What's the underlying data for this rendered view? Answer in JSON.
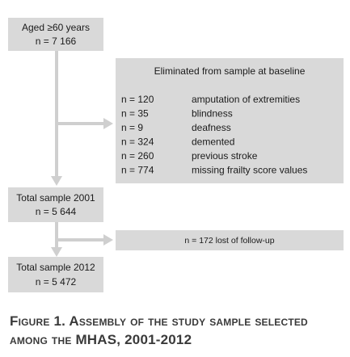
{
  "nodes": [
    {
      "label": "Aged ≥60 years",
      "count": "n = 7 166"
    },
    {
      "label": "Total sample 2001",
      "count": "n = 5 644"
    },
    {
      "label": "Total sample 2012",
      "count": "n = 5 472"
    }
  ],
  "excluded": {
    "title": "Eliminated from sample at baseline",
    "rows": [
      [
        "n = 120",
        "amputation of extremities"
      ],
      [
        "n = 35",
        "blindness"
      ],
      [
        "n = 9",
        "deafness"
      ],
      [
        "n = 324",
        "demented"
      ],
      [
        "n = 260",
        "previous stroke"
      ],
      [
        "n = 774",
        "missing frailty score values"
      ]
    ]
  },
  "lost": {
    "label": "n = 172 lost of follow-up"
  },
  "caption": "Figure 1. Assembly of the study sample selected among the MHAS, 2001-2012"
}
